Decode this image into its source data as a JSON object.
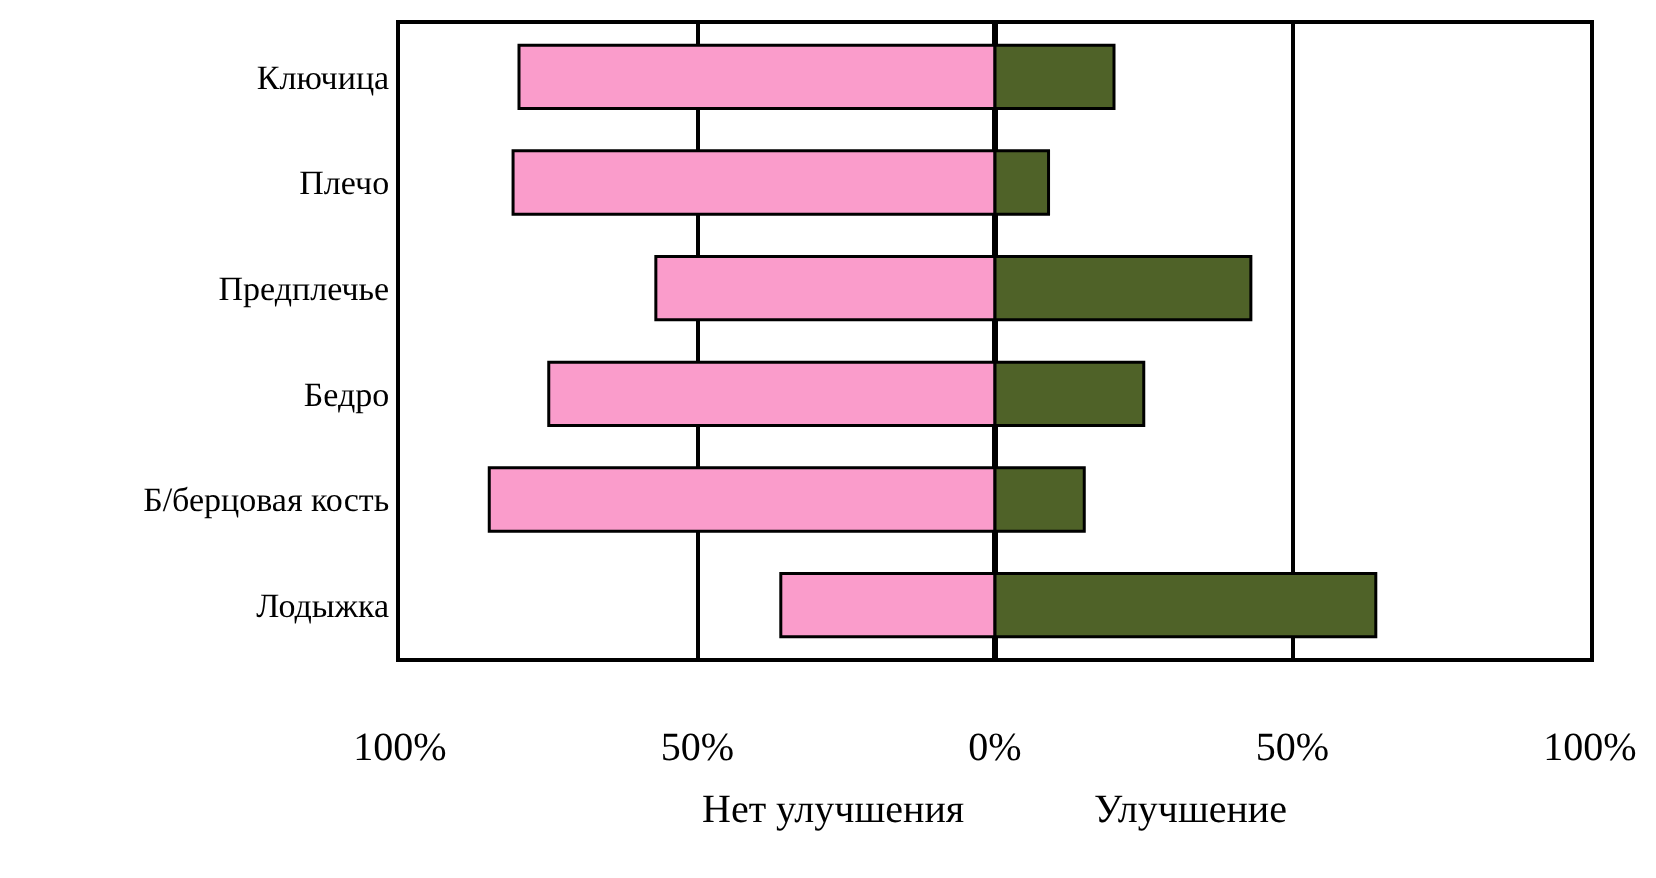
{
  "chart_data": {
    "type": "bar",
    "orientation": "horizontal",
    "stacked": true,
    "categories": [
      "Ключица",
      "Плечо",
      "Предплечье",
      "Бедро",
      "Б/берцовая кость",
      "Лодыжка"
    ],
    "series": [
      {
        "color": "#fa9ccb",
        "values": [
          -80,
          -81,
          -57,
          -75,
          -85,
          -36
        ]
      },
      {
        "color": "#4f6228",
        "values": [
          20,
          9,
          43,
          25,
          15,
          64
        ]
      }
    ],
    "xlim": [
      -100,
      100
    ],
    "xticks": [
      {
        "value": -100,
        "label": "100%"
      },
      {
        "value": -50,
        "label": "50%"
      },
      {
        "value": 0,
        "label": "0%"
      },
      {
        "value": 50,
        "label": "50%"
      },
      {
        "value": 100,
        "label": "100%"
      }
    ],
    "grid": "x",
    "annotations": [
      "Нет улучшения",
      "Улучшение"
    ]
  }
}
